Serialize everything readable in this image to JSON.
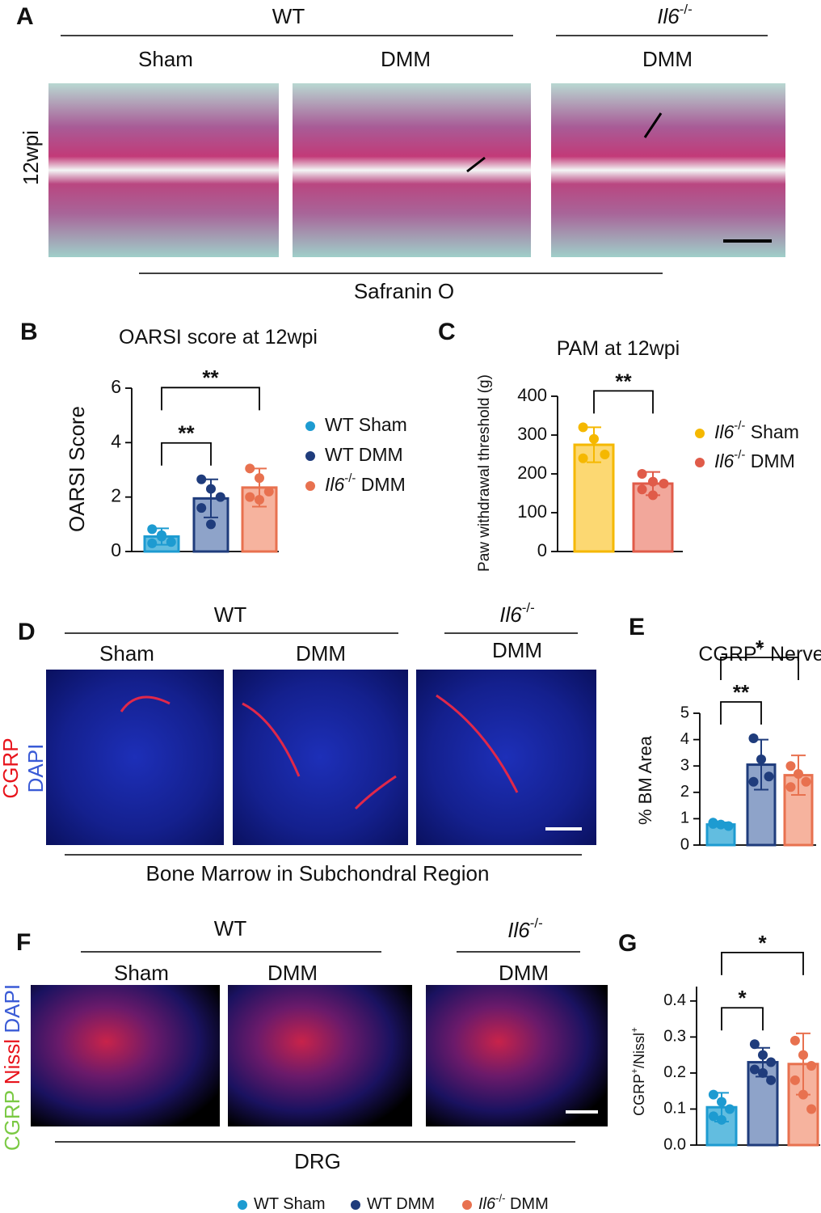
{
  "panels": {
    "a": "A",
    "b": "B",
    "c": "C",
    "d": "D",
    "e": "E",
    "f": "F",
    "g": "G"
  },
  "panel_a": {
    "group_wt": "WT",
    "group_ko": "Il6-/-",
    "col1": "Sham",
    "col2": "DMM",
    "col3": "DMM",
    "row": "12wpi",
    "stain": "Safranin O"
  },
  "panel_d": {
    "group_wt": "WT",
    "group_ko": "Il6-/-",
    "col1": "Sham",
    "col2": "DMM",
    "col3": "DMM",
    "stain1": "CGRP",
    "stain2": "DAPI",
    "region": "Bone Marrow in Subchondral Region"
  },
  "panel_f": {
    "group_wt": "WT",
    "group_ko": "Il6-/-",
    "col1": "Sham",
    "col2": "DMM",
    "col3": "DMM",
    "stain1": "CGRP",
    "stain2": "Nissl",
    "stain3": "DAPI",
    "region": "DRG"
  },
  "chart_data": [
    {
      "type": "bar",
      "title": "OARSI score at 12wpi",
      "ylabel": "OARSI Score",
      "ylim": [
        0,
        6
      ],
      "yticks": [
        0,
        2,
        4,
        6
      ],
      "legend": true,
      "series": [
        {
          "name": "WT Sham",
          "color": "#62bde0",
          "edge": "#1d9bd1",
          "values": [
            0.55
          ],
          "errors": [
            0.3
          ],
          "points": [
            0.82,
            0.55,
            0.35,
            0.3,
            0.6
          ]
        },
        {
          "name": "WT DMM",
          "color": "#8ea3c9",
          "edge": "#1f3c7c",
          "values": [
            1.95
          ],
          "errors": [
            0.7
          ],
          "points": [
            2.65,
            2.3,
            2.0,
            1.6,
            1.0
          ]
        },
        {
          "name": "Il6-/- DMM",
          "color": "#f6b39e",
          "edge": "#e8714f",
          "values": [
            2.35
          ],
          "errors": [
            0.7
          ],
          "points": [
            3.05,
            2.7,
            2.2,
            2.0,
            1.9
          ]
        }
      ],
      "annotations": [
        {
          "label": "**",
          "from": 0,
          "to": 1
        },
        {
          "label": "**",
          "from": 0,
          "to": 2
        }
      ]
    },
    {
      "type": "bar",
      "title": "PAM at 12wpi",
      "ylabel": "Paw withdrawal threshold (g)",
      "ylim": [
        0,
        400
      ],
      "yticks": [
        0,
        100,
        200,
        300,
        400
      ],
      "legend": true,
      "series": [
        {
          "name": "Il6-/- Sham",
          "color": "#fcd872",
          "edge": "#f5b800",
          "values": [
            275
          ],
          "errors": [
            45
          ],
          "points": [
            320,
            290,
            250,
            240
          ]
        },
        {
          "name": "Il6-/- DMM",
          "color": "#f2a79b",
          "edge": "#e05b49",
          "values": [
            175
          ],
          "errors": [
            30
          ],
          "points": [
            200,
            180,
            175,
            160,
            145
          ]
        }
      ],
      "annotations": [
        {
          "label": "**",
          "from": 0,
          "to": 1
        }
      ]
    },
    {
      "type": "bar",
      "title": "CGRP+ Nerve",
      "ylabel": "% BM Area",
      "ylim": [
        0,
        5
      ],
      "yticks": [
        0,
        1,
        2,
        3,
        4,
        5
      ],
      "legend": false,
      "series": [
        {
          "name": "WT Sham",
          "color": "#62bde0",
          "edge": "#1d9bd1",
          "values": [
            0.78
          ],
          "errors": [
            0.08
          ],
          "points": [
            0.85,
            0.78,
            0.72,
            0.8
          ]
        },
        {
          "name": "WT DMM",
          "color": "#8ea3c9",
          "edge": "#1f3c7c",
          "values": [
            3.05
          ],
          "errors": [
            0.95
          ],
          "points": [
            4.05,
            3.25,
            2.6,
            2.4
          ]
        },
        {
          "name": "Il6-/- DMM",
          "color": "#f6b39e",
          "edge": "#e8714f",
          "values": [
            2.65
          ],
          "errors": [
            0.75
          ],
          "points": [
            3.0,
            2.7,
            2.4,
            2.2
          ]
        }
      ],
      "annotations": [
        {
          "label": "**",
          "from": 0,
          "to": 1
        },
        {
          "label": "*",
          "from": 0,
          "to": 2
        }
      ]
    },
    {
      "type": "bar",
      "ylabel": "CGRP+/Nissl+",
      "ylim": [
        0,
        0.44
      ],
      "yticks": [
        {
          "value": 0,
          "label": "0.0"
        },
        0.1,
        0.2,
        0.3,
        0.4
      ],
      "legend": false,
      "series": [
        {
          "name": "WT Sham",
          "color": "#62bde0",
          "edge": "#1d9bd1",
          "values": [
            0.105
          ],
          "errors": [
            0.04
          ],
          "points": [
            0.14,
            0.12,
            0.1,
            0.08,
            0.07
          ]
        },
        {
          "name": "WT DMM",
          "color": "#8ea3c9",
          "edge": "#1f3c7c",
          "values": [
            0.23
          ],
          "errors": [
            0.04
          ],
          "points": [
            0.28,
            0.25,
            0.23,
            0.21,
            0.2,
            0.18
          ]
        },
        {
          "name": "Il6-/- DMM",
          "color": "#f6b39e",
          "edge": "#e8714f",
          "values": [
            0.225
          ],
          "errors": [
            0.085
          ],
          "points": [
            0.29,
            0.25,
            0.22,
            0.18,
            0.14,
            0.1
          ]
        }
      ],
      "annotations": [
        {
          "label": "*",
          "from": 0,
          "to": 1
        },
        {
          "label": "*",
          "from": 0,
          "to": 2
        }
      ]
    }
  ],
  "legend": [
    {
      "name": "WT Sham",
      "color": "#1d9bd1"
    },
    {
      "name": "WT DMM",
      "color": "#1f3c7c"
    },
    {
      "name": "Il6-/- DMM",
      "color": "#e8714f"
    }
  ]
}
